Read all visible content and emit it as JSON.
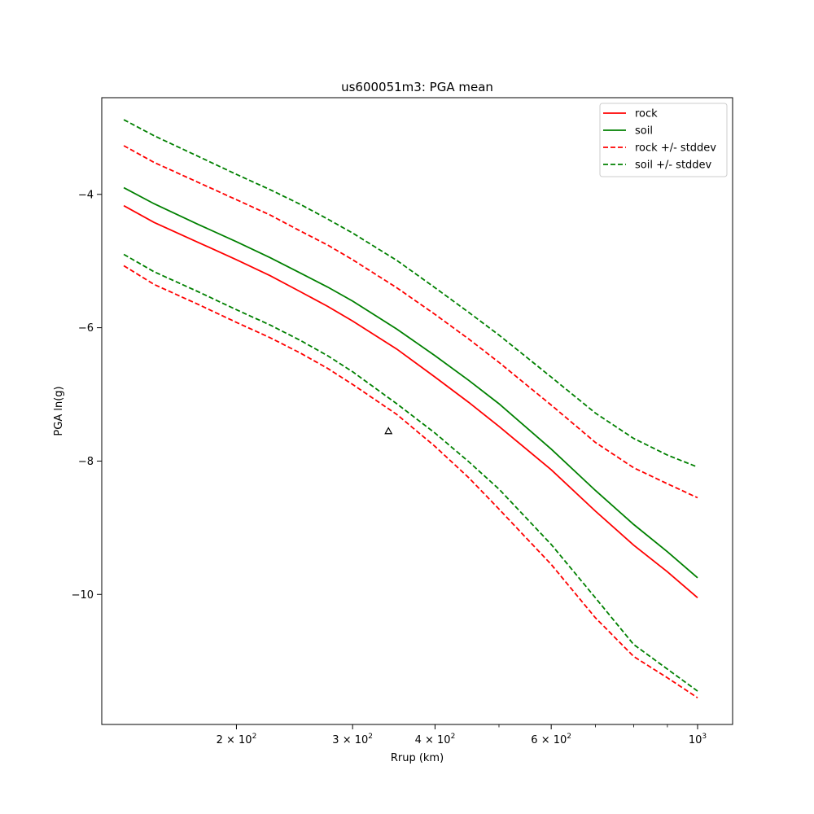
{
  "chart_data": {
    "type": "line",
    "title": "us600051m3: PGA mean",
    "xlabel": "Rrup (km)",
    "ylabel": "PGA ln(g)",
    "xscale": "log",
    "xlim": [
      125,
      1130
    ],
    "ylim": [
      -11.95,
      -2.55
    ],
    "grid": false,
    "legend_position": "top-right",
    "x_ticks": [
      {
        "value": 200,
        "mantissa": "2",
        "exponent": "2"
      },
      {
        "value": 300,
        "mantissa": "3",
        "exponent": "2"
      },
      {
        "value": 400,
        "mantissa": "4",
        "exponent": "2"
      },
      {
        "value": 600,
        "mantissa": "6",
        "exponent": "2"
      },
      {
        "value": 1000,
        "mantissa": "",
        "exponent": "3"
      }
    ],
    "x_tick_base": "10",
    "x_minor_ticks": [
      500,
      700,
      800,
      900
    ],
    "y_ticks": [
      {
        "value": -4,
        "label": "−4"
      },
      {
        "value": -6,
        "label": "−6"
      },
      {
        "value": -8,
        "label": "−8"
      },
      {
        "value": -10,
        "label": "−10"
      }
    ],
    "x": [
      135,
      150,
      175,
      200,
      225,
      250,
      275,
      300,
      350,
      400,
      450,
      500,
      600,
      700,
      800,
      900,
      1000
    ],
    "series": [
      {
        "name": "rock",
        "color": "#ff0000",
        "style": "solid",
        "values": [
          -4.17,
          -4.42,
          -4.72,
          -4.98,
          -5.22,
          -5.46,
          -5.68,
          -5.9,
          -6.32,
          -6.74,
          -7.12,
          -7.48,
          -8.13,
          -8.75,
          -9.26,
          -9.66,
          -10.05
        ]
      },
      {
        "name": "soil",
        "color": "#008000",
        "style": "solid",
        "values": [
          -3.9,
          -4.14,
          -4.45,
          -4.71,
          -4.95,
          -5.18,
          -5.39,
          -5.6,
          -6.02,
          -6.42,
          -6.79,
          -7.14,
          -7.82,
          -8.44,
          -8.95,
          -9.36,
          -9.75
        ]
      },
      {
        "name": "rock +/- stddev",
        "color": "#ff0000",
        "style": "dashed",
        "values": [
          -3.27,
          -3.52,
          -3.82,
          -4.08,
          -4.31,
          -4.55,
          -4.76,
          -4.98,
          -5.4,
          -5.8,
          -6.17,
          -6.52,
          -7.16,
          -7.72,
          -8.1,
          -8.34,
          -8.55
        ]
      },
      {
        "name": "soil +/- stddev",
        "color": "#008000",
        "style": "dashed",
        "values": [
          -2.88,
          -3.12,
          -3.43,
          -3.7,
          -3.93,
          -4.15,
          -4.37,
          -4.58,
          -4.99,
          -5.4,
          -5.77,
          -6.11,
          -6.74,
          -7.28,
          -7.66,
          -7.91,
          -8.09
        ]
      },
      {
        "name": "",
        "color": "#ff0000",
        "style": "dashed",
        "legend": false,
        "values": [
          -5.07,
          -5.35,
          -5.65,
          -5.92,
          -6.15,
          -6.38,
          -6.61,
          -6.85,
          -7.3,
          -7.78,
          -8.25,
          -8.72,
          -9.55,
          -10.35,
          -10.93,
          -11.25,
          -11.55
        ]
      },
      {
        "name": "",
        "color": "#008000",
        "style": "dashed",
        "legend": false,
        "values": [
          -4.9,
          -5.16,
          -5.46,
          -5.73,
          -5.96,
          -6.19,
          -6.42,
          -6.66,
          -7.14,
          -7.58,
          -8.01,
          -8.42,
          -9.25,
          -10.05,
          -10.75,
          -11.12,
          -11.45
        ]
      }
    ],
    "observations": [
      {
        "x": 340,
        "y": -7.55,
        "marker": "triangle"
      }
    ]
  }
}
